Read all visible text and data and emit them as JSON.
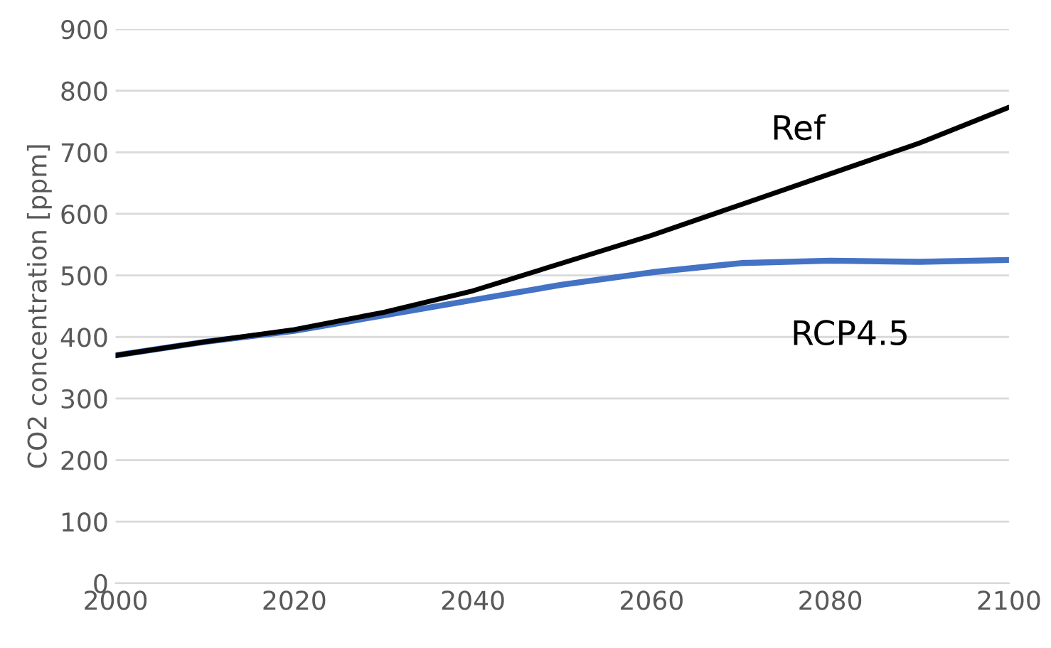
{
  "chart_data": {
    "type": "line",
    "ylabel": "CO2 concentration [ppm]",
    "x": [
      2000,
      2010,
      2020,
      2030,
      2040,
      2050,
      2060,
      2070,
      2080,
      2090,
      2100
    ],
    "series": [
      {
        "name": "Ref",
        "color": "#000000",
        "values": [
          370,
          392,
          412,
          440,
          475,
          520,
          565,
          615,
          665,
          715,
          773
        ]
      },
      {
        "name": "RCP4.5",
        "color": "#4472c4",
        "values": [
          370,
          392,
          410,
          435,
          460,
          485,
          505,
          520,
          524,
          522,
          525
        ]
      }
    ],
    "xlim": [
      2000,
      2100
    ],
    "xticks": [
      2000,
      2020,
      2040,
      2060,
      2080,
      2100
    ],
    "ylim": [
      0,
      900
    ],
    "yticks": [
      0,
      100,
      200,
      300,
      400,
      500,
      600,
      700,
      800,
      900
    ],
    "grid": "y",
    "legend": false,
    "marker": "none",
    "line_style": "solid"
  }
}
